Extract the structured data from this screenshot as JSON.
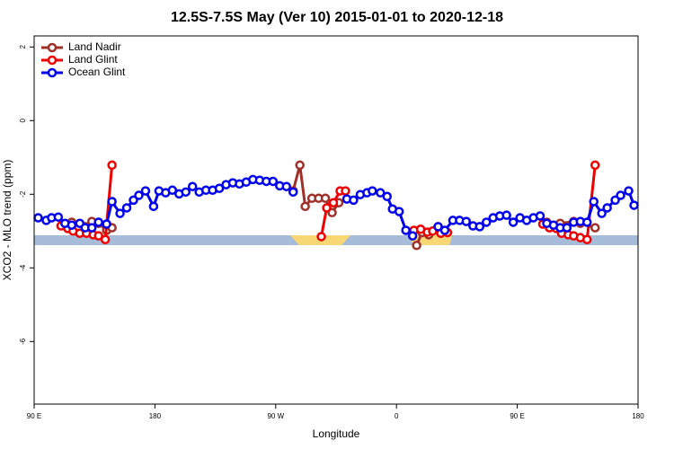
{
  "chart_data": {
    "type": "line",
    "title": "12.5S-7.5S May (Ver 10)   2015-01-01 to 2020-12-18",
    "xlabel": "Longitude",
    "ylabel": "XCO2 - MLO trend (ppm)",
    "xlim": [
      90,
      540
    ],
    "ylim": [
      -7.7,
      2.3
    ],
    "xticks": [
      {
        "value": 90,
        "label": "90 E"
      },
      180,
      {
        "value": 270,
        "label": "90 W"
      },
      {
        "value": 360,
        "label": "0"
      },
      {
        "value": 450,
        "label": "90 E"
      },
      {
        "value": 540,
        "label": "180"
      }
    ],
    "yticks": [
      2,
      0,
      -2,
      -4,
      -6
    ],
    "legend": "top-left",
    "series": [
      {
        "name": "Land Nadir",
        "color": "#a0302a",
        "x": [
          118,
          128,
          133,
          138,
          144,
          148,
          null,
          283,
          288,
          292,
          297,
          302,
          307,
          312,
          317,
          null,
          375,
          379,
          384,
          null,
          472,
          477,
          482,
          492,
          497,
          508
        ],
        "values": [
          -2.76,
          -2.88,
          -2.74,
          -2.79,
          -2.98,
          -2.91,
          null,
          -1.91,
          -1.21,
          -2.33,
          -2.11,
          -2.11,
          -2.11,
          -2.5,
          -2.23,
          null,
          -3.39,
          -3.04,
          -3.1,
          null,
          -2.76,
          -2.86,
          -2.79,
          -2.74,
          -2.79,
          -2.91
        ]
      },
      {
        "name": "Land Glint",
        "color": "#ee0000",
        "x": [
          110,
          115,
          119,
          124,
          129,
          134,
          138,
          143,
          148,
          null,
          304,
          308,
          313,
          318,
          322,
          null,
          373,
          378,
          383,
          387,
          393,
          398,
          null,
          469,
          474,
          479,
          483,
          488,
          492,
          497,
          502,
          508
        ],
        "values": [
          -2.86,
          -2.93,
          -3.0,
          -3.06,
          -3.06,
          -3.1,
          -3.13,
          -3.23,
          -1.21,
          null,
          -3.15,
          -2.37,
          -2.23,
          -1.91,
          -1.91,
          null,
          -2.98,
          -2.95,
          -3.03,
          -3.0,
          -3.06,
          -3.04,
          null,
          -2.81,
          -2.91,
          -2.93,
          -3.06,
          -3.1,
          -3.13,
          -3.18,
          -3.23,
          -1.21
        ]
      },
      {
        "name": "Ocean Glint",
        "color": "#0000ee",
        "x": [
          93,
          99,
          103,
          108,
          113,
          118,
          124,
          128,
          133,
          138,
          144,
          148,
          154,
          159,
          164,
          168,
          173,
          179,
          183,
          188,
          193,
          198,
          203,
          208,
          213,
          218,
          223,
          228,
          233,
          238,
          243,
          248,
          253,
          258,
          263,
          268,
          273,
          278,
          283,
          null,
          323,
          328,
          333,
          338,
          342,
          348,
          353,
          357,
          362,
          367,
          372,
          null,
          391,
          396,
          402,
          407,
          412,
          417,
          422,
          427,
          432,
          437,
          442,
          447,
          452,
          457,
          462,
          467,
          472,
          477,
          482,
          487,
          492,
          497,
          502,
          507,
          513,
          517,
          523,
          527,
          533,
          537
        ],
        "values": [
          -2.64,
          -2.71,
          -2.64,
          -2.62,
          -2.79,
          -2.84,
          -2.79,
          -2.91,
          -2.91,
          -2.76,
          -2.81,
          -2.2,
          -2.52,
          -2.37,
          -2.16,
          -2.03,
          -1.91,
          -2.33,
          -1.91,
          -1.96,
          -1.89,
          -1.99,
          -1.94,
          -1.79,
          -1.94,
          -1.89,
          -1.89,
          -1.84,
          -1.74,
          -1.69,
          -1.72,
          -1.67,
          -1.6,
          -1.62,
          -1.65,
          -1.65,
          -1.77,
          -1.79,
          -1.94,
          null,
          -2.13,
          -2.16,
          -2.01,
          -1.96,
          -1.91,
          -1.96,
          -2.06,
          -2.4,
          -2.47,
          -2.98,
          -3.13,
          null,
          -2.88,
          -2.98,
          -2.71,
          -2.71,
          -2.74,
          -2.86,
          -2.88,
          -2.76,
          -2.64,
          -2.59,
          -2.57,
          -2.76,
          -2.64,
          -2.71,
          -2.64,
          -2.59,
          -2.79,
          -2.84,
          -2.91,
          -2.91,
          -2.76,
          -2.74,
          -2.76,
          -2.2,
          -2.52,
          -2.37,
          -2.16,
          -2.03,
          -1.91,
          -2.3
        ]
      }
    ]
  }
}
